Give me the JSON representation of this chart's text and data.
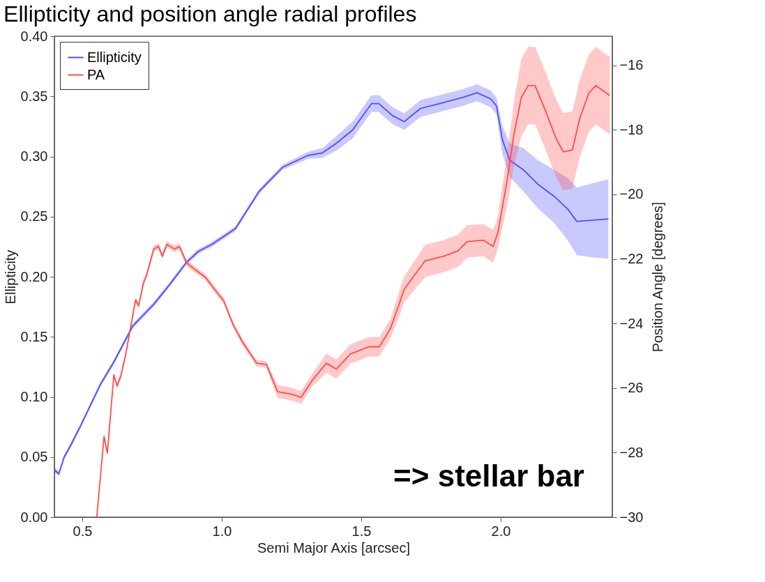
{
  "chart_data": {
    "type": "line",
    "title": "Ellipticity and position angle radial profiles",
    "xlabel": "Semi Major Axis [arcsec]",
    "ylabel": "Ellipticity",
    "y2label": "Position Angle [degrees]",
    "annotations": [
      "=> stellar bar"
    ],
    "xlim": [
      0.4,
      2.4
    ],
    "xticks": [
      0.5,
      {
        "value": 1,
        "label": "1.0"
      },
      1.5,
      {
        "value": 2,
        "label": "2.0"
      }
    ],
    "ylim": [
      0,
      0.4
    ],
    "yticks": [
      {
        "value": 0,
        "label": "0.00"
      },
      {
        "value": 0.05,
        "label": "0.05"
      },
      {
        "value": 0.1,
        "label": "0.10"
      },
      {
        "value": 0.15,
        "label": "0.15"
      },
      {
        "value": 0.2,
        "label": "0.20"
      },
      {
        "value": 0.25,
        "label": "0.25"
      },
      {
        "value": 0.3,
        "label": "0.30"
      },
      {
        "value": 0.35,
        "label": "0.35"
      },
      {
        "value": 0.4,
        "label": "0.40"
      }
    ],
    "y2lim": [
      -30,
      -15.1
    ],
    "y2ticks": [
      {
        "value": -30,
        "label": "−30"
      },
      {
        "value": -28,
        "label": "−28"
      },
      {
        "value": -26,
        "label": "−26"
      },
      {
        "value": -24,
        "label": "−24"
      },
      {
        "value": -22,
        "label": "−22"
      },
      {
        "value": -20,
        "label": "−20"
      },
      {
        "value": -18,
        "label": "−18"
      },
      {
        "value": -16,
        "label": "−16"
      }
    ],
    "grid": false,
    "legend": "top left",
    "line_style": "solid",
    "marker": "none",
    "series": [
      {
        "name": "Ellipticity",
        "color": "#4d4dff",
        "x": [
          0.402,
          0.416,
          0.435,
          0.459,
          0.494,
          0.529,
          0.564,
          0.613,
          0.681,
          0.756,
          0.815,
          0.874,
          0.916,
          0.965,
          1.049,
          1.134,
          1.218,
          1.31,
          1.361,
          1.411,
          1.469,
          1.537,
          1.563,
          1.612,
          1.654,
          1.713,
          1.781,
          1.863,
          1.915,
          1.964,
          1.985,
          2.006,
          2.032,
          2.081,
          2.133,
          2.191,
          2.241,
          2.273,
          2.332,
          2.386
        ],
        "values": [
          0.039,
          0.036,
          0.05,
          0.06,
          0.076,
          0.093,
          0.11,
          0.129,
          0.159,
          0.177,
          0.194,
          0.212,
          0.221,
          0.227,
          0.24,
          0.271,
          0.291,
          0.301,
          0.303,
          0.311,
          0.322,
          0.344,
          0.344,
          0.334,
          0.329,
          0.34,
          0.344,
          0.349,
          0.353,
          0.348,
          0.342,
          0.314,
          0.297,
          0.289,
          0.277,
          0.267,
          0.256,
          0.246,
          0.247,
          0.248
        ],
        "lower": [
          0.037,
          0.034,
          0.048,
          0.058,
          0.074,
          0.091,
          0.108,
          0.127,
          0.157,
          0.175,
          0.192,
          0.21,
          0.219,
          0.225,
          0.238,
          0.269,
          0.289,
          0.298,
          0.299,
          0.305,
          0.315,
          0.337,
          0.337,
          0.327,
          0.322,
          0.333,
          0.337,
          0.342,
          0.346,
          0.341,
          0.335,
          0.302,
          0.283,
          0.271,
          0.257,
          0.245,
          0.23,
          0.218,
          0.216,
          0.215
        ],
        "upper": [
          0.041,
          0.038,
          0.052,
          0.062,
          0.078,
          0.095,
          0.112,
          0.131,
          0.161,
          0.179,
          0.196,
          0.214,
          0.223,
          0.229,
          0.242,
          0.273,
          0.293,
          0.304,
          0.307,
          0.317,
          0.329,
          0.351,
          0.351,
          0.341,
          0.336,
          0.347,
          0.351,
          0.356,
          0.36,
          0.355,
          0.349,
          0.326,
          0.311,
          0.307,
          0.297,
          0.289,
          0.282,
          0.274,
          0.278,
          0.281
        ]
      },
      {
        "name": "PA",
        "color": "#ff4d4d",
        "axis": "y2",
        "x": [
          0.552,
          0.578,
          0.59,
          0.613,
          0.625,
          0.639,
          0.656,
          0.691,
          0.702,
          0.719,
          0.731,
          0.756,
          0.773,
          0.787,
          0.803,
          0.831,
          0.848,
          0.874,
          0.906,
          0.942,
          0.974,
          1.007,
          1.042,
          1.075,
          1.125,
          1.16,
          1.2,
          1.251,
          1.284,
          1.326,
          1.375,
          1.411,
          1.462,
          1.528,
          1.565,
          1.605,
          1.638,
          1.654,
          1.729,
          1.797,
          1.847,
          1.879,
          1.938,
          1.973,
          1.99,
          2.023,
          2.048,
          2.074,
          2.098,
          2.123,
          2.156,
          2.198,
          2.224,
          2.257,
          2.283,
          2.316,
          2.341,
          2.391
        ],
        "values": [
          -30.0,
          -27.5,
          -28.01,
          -25.6,
          -25.93,
          -25.6,
          -24.94,
          -23.27,
          -23.45,
          -22.75,
          -22.49,
          -21.69,
          -21.61,
          -21.91,
          -21.55,
          -21.69,
          -21.61,
          -22.12,
          -22.34,
          -22.57,
          -22.94,
          -23.3,
          -24.06,
          -24.58,
          -25.23,
          -25.27,
          -26.11,
          -26.19,
          -26.29,
          -25.74,
          -25.23,
          -25.41,
          -24.94,
          -24.72,
          -24.72,
          -24.15,
          -23.35,
          -22.94,
          -22.06,
          -21.91,
          -21.75,
          -21.46,
          -21.42,
          -21.61,
          -21.18,
          -19.56,
          -18.11,
          -17.0,
          -16.63,
          -16.63,
          -17.31,
          -18.25,
          -18.68,
          -18.62,
          -17.66,
          -16.86,
          -16.63,
          -16.94
        ],
        "lower": [
          -30.0,
          -27.6,
          -28.11,
          -25.7,
          -26.03,
          -25.7,
          -25.04,
          -23.37,
          -23.55,
          -22.85,
          -22.59,
          -21.79,
          -21.71,
          -22.01,
          -21.65,
          -21.79,
          -21.71,
          -22.22,
          -22.44,
          -22.67,
          -23.04,
          -23.4,
          -24.16,
          -24.68,
          -25.33,
          -25.37,
          -26.31,
          -26.39,
          -26.49,
          -25.94,
          -25.53,
          -25.71,
          -25.24,
          -25.02,
          -25.02,
          -24.45,
          -23.75,
          -23.34,
          -22.56,
          -22.41,
          -22.25,
          -21.96,
          -21.92,
          -22.11,
          -21.68,
          -20.36,
          -19.11,
          -18.2,
          -17.83,
          -17.83,
          -18.51,
          -19.45,
          -19.88,
          -19.82,
          -18.86,
          -18.06,
          -17.83,
          -18.14
        ],
        "upper": [
          -29.9,
          -27.4,
          -27.91,
          -25.5,
          -25.83,
          -25.5,
          -24.84,
          -23.17,
          -23.35,
          -22.65,
          -22.39,
          -21.59,
          -21.51,
          -21.81,
          -21.45,
          -21.59,
          -21.51,
          -22.02,
          -22.24,
          -22.47,
          -22.84,
          -23.2,
          -23.96,
          -24.48,
          -25.13,
          -25.17,
          -25.91,
          -25.99,
          -26.09,
          -25.54,
          -24.93,
          -25.11,
          -24.64,
          -24.42,
          -24.42,
          -23.85,
          -22.95,
          -22.54,
          -21.56,
          -21.41,
          -21.25,
          -20.96,
          -20.92,
          -21.11,
          -20.68,
          -18.76,
          -17.11,
          -15.8,
          -15.43,
          -15.43,
          -16.11,
          -17.05,
          -17.48,
          -17.42,
          -16.46,
          -15.66,
          -15.43,
          -15.74
        ]
      }
    ]
  }
}
